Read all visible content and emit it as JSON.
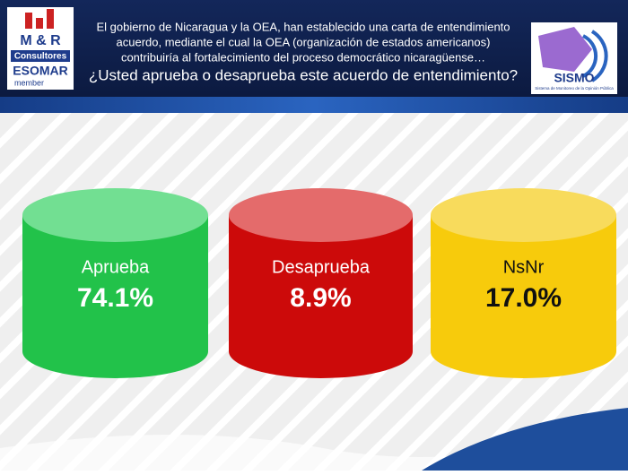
{
  "header": {
    "lines": [
      "El gobierno de Nicaragua y la OEA, han establecido una carta de entendimiento",
      "acuerdo, mediante el cual la OEA (organización de estados americanos)",
      "contribuiría al fortalecimiento del proceso democrático nicaragüense…"
    ],
    "question": "¿Usted aprueba o desaprueba este acuerdo de entendimiento?"
  },
  "left_logo": {
    "name": "M & R",
    "subtitle": "Consultores",
    "org": "ESOMAR",
    "member": "member"
  },
  "right_logo": {
    "name": "SISMO",
    "subtitle": "Sistema de Monitoreo de la Opinión Pública"
  },
  "items": [
    {
      "label": "Aprueba",
      "value": "74.1%"
    },
    {
      "label": "Desaprueba",
      "value": "8.9%"
    },
    {
      "label": "NsNr",
      "value": "17.0%"
    }
  ]
}
